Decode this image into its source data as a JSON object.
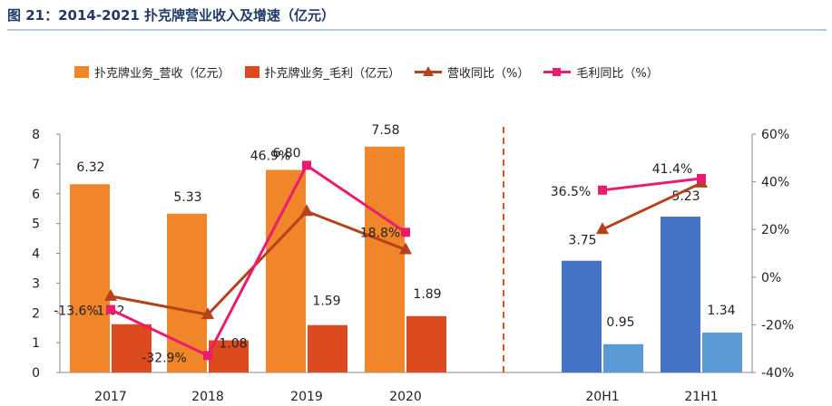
{
  "header": {
    "title": "图 21：2014-2021 扑克牌营业收入及增速（亿元）"
  },
  "chart_data": {
    "type": "bar",
    "title": "2014-2021 扑克牌营业收入及增速（亿元）",
    "categories": [
      "2017",
      "2018",
      "2019",
      "2020",
      "20H1",
      "21H1"
    ],
    "legend": [
      {
        "key": "revenue",
        "label": "扑克牌业务_营收（亿元）",
        "kind": "bar"
      },
      {
        "key": "gross_profit",
        "label": "扑克牌业务_毛利（亿元）",
        "kind": "bar"
      },
      {
        "key": "revenue_yoy",
        "label": "营收同比（%）",
        "kind": "line-triangle"
      },
      {
        "key": "gp_yoy",
        "label": "毛利同比（%）",
        "kind": "line-square"
      }
    ],
    "series": [
      {
        "name": "扑克牌业务_营收（亿元）",
        "key": "revenue",
        "axis": "left",
        "values": [
          6.32,
          5.33,
          6.8,
          7.58,
          3.75,
          5.23
        ],
        "labels": [
          "6.32",
          "5.33",
          "6.80",
          "7.58",
          "3.75",
          "5.23"
        ]
      },
      {
        "name": "扑克牌业务_毛利（亿元）",
        "key": "gross_profit",
        "axis": "left",
        "values": [
          1.62,
          1.08,
          1.59,
          1.89,
          0.95,
          1.34
        ],
        "labels": [
          "1.62",
          "1.08",
          "1.59",
          "1.89",
          "0.95",
          "1.34"
        ]
      },
      {
        "name": "营收同比（%）",
        "key": "revenue_yoy",
        "axis": "right",
        "values": [
          -8.0,
          -15.7,
          27.6,
          11.5,
          20.0,
          39.5
        ]
      },
      {
        "name": "毛利同比（%）",
        "key": "gp_yoy",
        "axis": "right",
        "values": [
          -13.6,
          -32.9,
          46.9,
          18.8,
          36.5,
          41.4
        ],
        "labels": [
          "-13.6%",
          "-32.9%",
          "46.9%",
          "18.8%",
          "36.5%",
          "41.4%"
        ]
      }
    ],
    "y_left": {
      "min": 0,
      "max": 8,
      "ticks": [
        "0",
        "1",
        "2",
        "3",
        "4",
        "5",
        "6",
        "7",
        "8"
      ]
    },
    "y_right": {
      "min": -40,
      "max": 60,
      "ticks": [
        "-40%",
        "-20%",
        "0%",
        "20%",
        "40%",
        "60%"
      ]
    },
    "colors": {
      "revenue_annual": "#f0852a",
      "gp_annual": "#dc4a20",
      "revenue_half": "#4472c4",
      "gp_half": "#5b9bd5",
      "revenue_yoy_line": "#b4421d",
      "gp_yoy_line": "#ea1c6e",
      "divider": "#e0542a"
    }
  }
}
